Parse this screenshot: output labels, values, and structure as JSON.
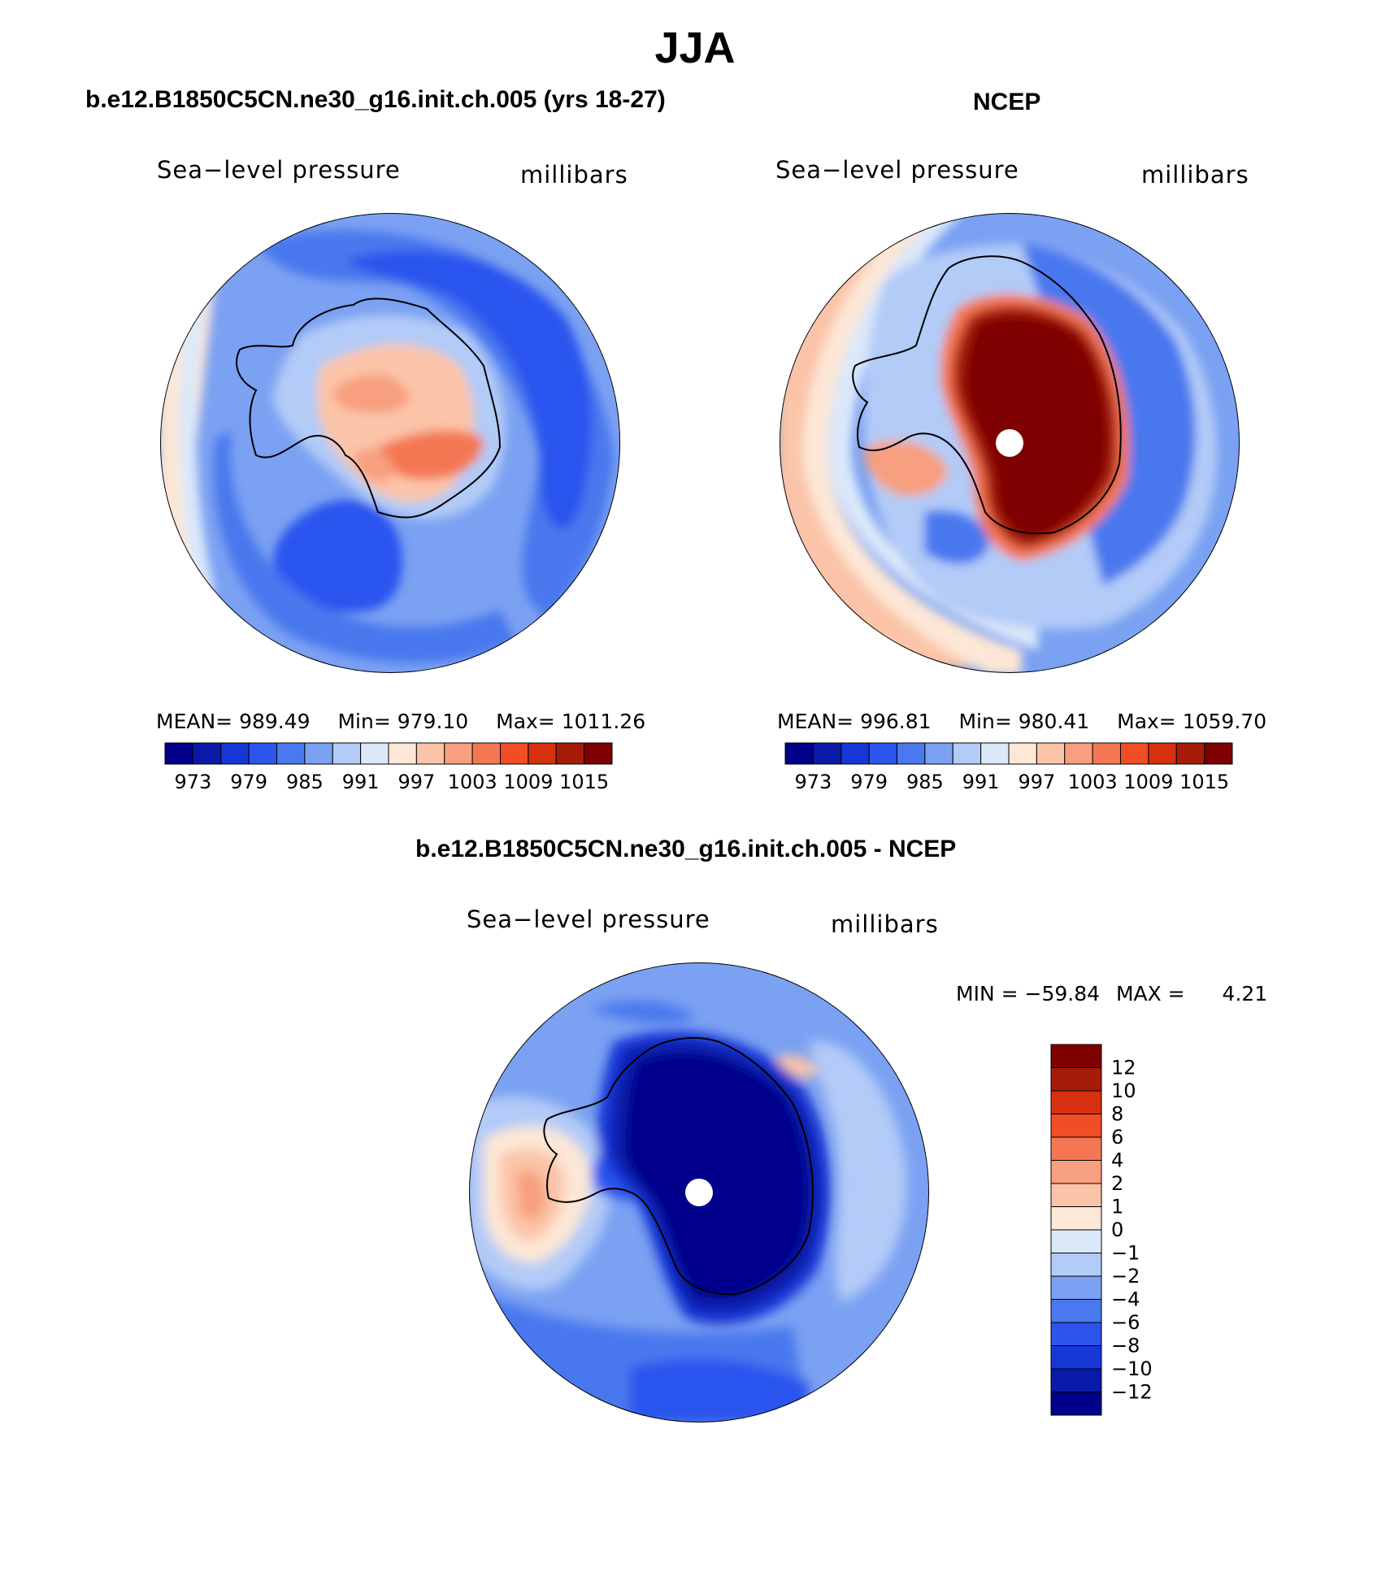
{
  "main_title": "JJA",
  "chart_data": [
    {
      "type": "heatmap",
      "projection": "south-polar-stereographic",
      "title": "b.e12.B1850C5CN.ne30_g16.init.ch.005 (yrs 18-27)",
      "field_label": "Sea−level pressure",
      "units_label": "millibars",
      "stats": {
        "mean_label": "MEAN=",
        "mean": "989.49",
        "min_label": "Min=",
        "min": "979.10",
        "max_label": "Max=",
        "max": "1011.26"
      },
      "colorbar": {
        "orientation": "horizontal",
        "tick_labels": [
          "973",
          "979",
          "985",
          "991",
          "997",
          "1003",
          "1009",
          "1015"
        ],
        "levels": [
          973,
          976,
          979,
          982,
          985,
          988,
          991,
          994,
          997,
          1000,
          1003,
          1006,
          1009,
          1012,
          1015
        ],
        "colors": [
          "#00008b",
          "#0a1aa8",
          "#1736d6",
          "#2c55ee",
          "#4a78ee",
          "#7ba1f2",
          "#b2cbf7",
          "#dbe8fa",
          "#fde7d6",
          "#fbc4a8",
          "#f79f7e",
          "#f47753",
          "#f14e26",
          "#d7300f",
          "#a71c09",
          "#7f0000"
        ]
      }
    },
    {
      "type": "heatmap",
      "projection": "south-polar-stereographic",
      "title": "NCEP",
      "field_label": "Sea−level pressure",
      "units_label": "millibars",
      "stats": {
        "mean_label": "MEAN=",
        "mean": "996.81",
        "min_label": "Min=",
        "min": "980.41",
        "max_label": "Max=",
        "max": "1059.70"
      },
      "colorbar": {
        "orientation": "horizontal",
        "tick_labels": [
          "973",
          "979",
          "985",
          "991",
          "997",
          "1003",
          "1009",
          "1015"
        ],
        "levels": [
          973,
          976,
          979,
          982,
          985,
          988,
          991,
          994,
          997,
          1000,
          1003,
          1006,
          1009,
          1012,
          1015
        ],
        "colors": [
          "#00008b",
          "#0a1aa8",
          "#1736d6",
          "#2c55ee",
          "#4a78ee",
          "#7ba1f2",
          "#b2cbf7",
          "#dbe8fa",
          "#fde7d6",
          "#fbc4a8",
          "#f79f7e",
          "#f47753",
          "#f14e26",
          "#d7300f",
          "#a71c09",
          "#7f0000"
        ]
      }
    },
    {
      "type": "heatmap",
      "projection": "south-polar-stereographic",
      "title": "b.e12.B1850C5CN.ne30_g16.init.ch.005 - NCEP",
      "field_label": "Sea−level pressure",
      "units_label": "millibars",
      "stats": {
        "min_label": "MIN =",
        "min": "−59.84",
        "max_label": "MAX =",
        "max": "4.21"
      },
      "colorbar": {
        "orientation": "vertical",
        "tick_labels": [
          "12",
          "10",
          "8",
          "6",
          "4",
          "2",
          "1",
          "0",
          "−1",
          "−2",
          "−4",
          "−6",
          "−8",
          "−10",
          "−12"
        ],
        "levels": [
          12,
          10,
          8,
          6,
          4,
          2,
          1,
          0,
          -1,
          -2,
          -4,
          -6,
          -8,
          -10,
          -12
        ],
        "colors": [
          "#7f0000",
          "#a71c09",
          "#d7300f",
          "#f14e26",
          "#f47753",
          "#f79f7e",
          "#fbc4a8",
          "#fde7d6",
          "#dbe8fa",
          "#b2cbf7",
          "#7ba1f2",
          "#4a78ee",
          "#2c55ee",
          "#1736d6",
          "#0a1aa8",
          "#00008b"
        ]
      }
    }
  ]
}
